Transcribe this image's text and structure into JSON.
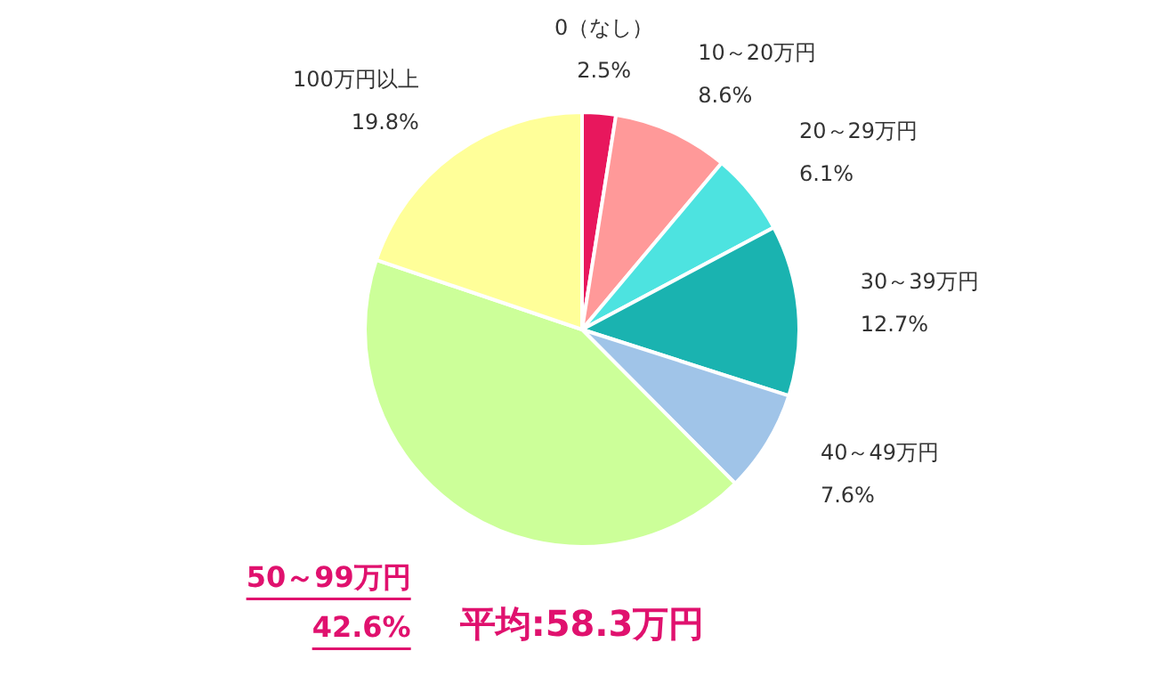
{
  "chart_data": {
    "type": "pie",
    "categories": [
      "0（なし）",
      "10～20万円",
      "20～29万円",
      "30～39万円",
      "40～49万円",
      "50～99万円",
      "100万円以上"
    ],
    "values": [
      2.5,
      8.6,
      6.1,
      12.7,
      7.6,
      42.6,
      19.8
    ],
    "value_labels": [
      "2.5%",
      "8.6%",
      "6.1%",
      "12.7%",
      "7.6%",
      "42.6%",
      "19.8%"
    ],
    "colors": [
      "#e8175d",
      "#ff9999",
      "#4de3e0",
      "#1ab3b0",
      "#a0c4e8",
      "#ccff99",
      "#ffff99"
    ],
    "annotations": [
      "平均:58.3万円"
    ],
    "legend": false
  }
}
